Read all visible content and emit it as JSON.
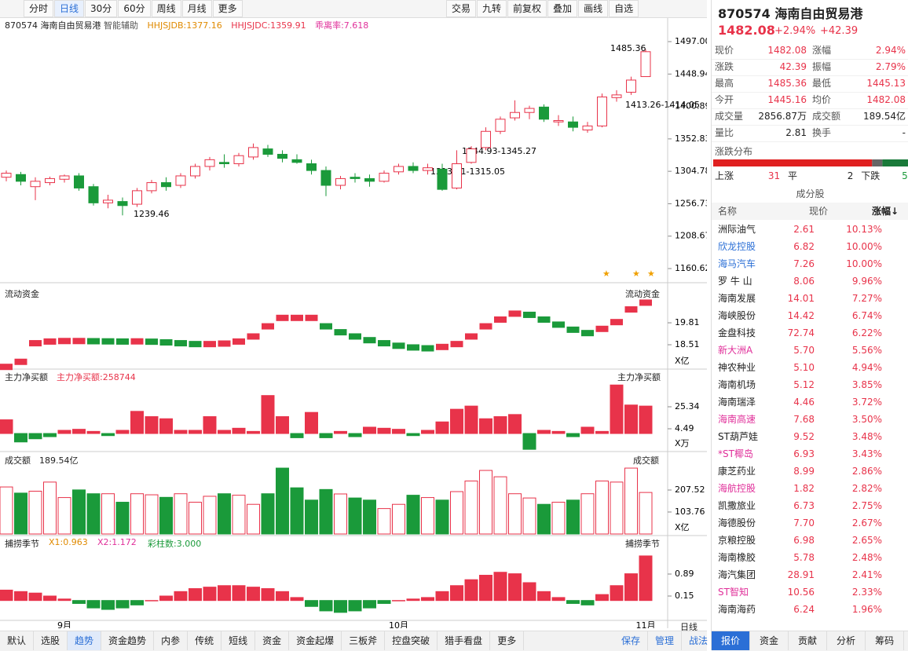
{
  "toolbar": {
    "left": [
      "分时",
      "日线",
      "30分",
      "60分",
      "周线",
      "月线",
      "更多"
    ],
    "right": [
      "交易",
      "九转",
      "前复权",
      "叠加",
      "画线",
      "自选"
    ]
  },
  "chart_header": {
    "code": "870574",
    "name": "海南自由贸易港",
    "assist": "智能辅助",
    "indicators": [
      "HHJSJDB:1377.16",
      "HHJSJDC:1359.91",
      "乖离率:7.618"
    ]
  },
  "annotations": [
    "1485.36",
    "1239.46",
    "1344.93-1345.27",
    "1313.71-1315.05",
    "1413.26-1414.05"
  ],
  "panel_labels": {
    "flow": "流动资金",
    "net": "主力净买额",
    "net_value": "主力净买额:258744",
    "volume": "成交额",
    "volume_value": "189.54亿",
    "season": "捕捞季节",
    "season_values": [
      "X1:0.963",
      "X2:1.172",
      "彩柱数:3.000"
    ],
    "axis_mode": "日线"
  },
  "chart_data": [
    {
      "type": "candlestick",
      "ylim": [
        1139.67,
        1506.31
      ],
      "yticks": [
        {
          "value": 1497,
          "label": "1497.00"
        },
        1448.94,
        1400.89,
        1352.83,
        1304.78,
        1256.73,
        1208.67,
        1160.62
      ],
      "categories": [
        null,
        null,
        null,
        null,
        "9月",
        null,
        null,
        null,
        null,
        null,
        null,
        null,
        null,
        null,
        null,
        null,
        null,
        null,
        null,
        null,
        null,
        null,
        null,
        null,
        null,
        null,
        null,
        "10月",
        null,
        null,
        null,
        null,
        null,
        null,
        null,
        null,
        null,
        null,
        null,
        null,
        null,
        null,
        null,
        null,
        "11月"
      ],
      "up_color": "#e8334a",
      "down_color": "#1a9a3a",
      "ohlc": [
        [
          1296,
          1306,
          1290,
          1302
        ],
        [
          1300,
          1304,
          1284,
          1290
        ],
        [
          1282,
          1296,
          1262,
          1290
        ],
        [
          1288,
          1297,
          1284,
          1294
        ],
        [
          1293,
          1300,
          1288,
          1298
        ],
        [
          1298,
          1302,
          1276,
          1280
        ],
        [
          1282,
          1286,
          1254,
          1258
        ],
        [
          1258,
          1270,
          1250,
          1262
        ],
        [
          1260,
          1266,
          1239.46,
          1254
        ],
        [
          1256,
          1280,
          1252,
          1276
        ],
        [
          1276,
          1292,
          1272,
          1288
        ],
        [
          1288,
          1296,
          1276,
          1282
        ],
        [
          1284,
          1302,
          1280,
          1298
        ],
        [
          1298,
          1316,
          1294,
          1312
        ],
        [
          1312,
          1326,
          1306,
          1322
        ],
        [
          1318,
          1330,
          1310,
          1316
        ],
        [
          1316,
          1332,
          1312,
          1328
        ],
        [
          1326,
          1346,
          1322,
          1340
        ],
        [
          1338,
          1344,
          1326,
          1330
        ],
        [
          1330,
          1336,
          1318,
          1324
        ],
        [
          1322,
          1330,
          1316,
          1318
        ],
        [
          1316,
          1322,
          1300,
          1306
        ],
        [
          1306,
          1312,
          1268,
          1284
        ],
        [
          1284,
          1298,
          1278,
          1294
        ],
        [
          1296,
          1302,
          1288,
          1294
        ],
        [
          1294,
          1300,
          1282,
          1290
        ],
        [
          1290,
          1306,
          1288,
          1302
        ],
        [
          1304,
          1316,
          1300,
          1312
        ],
        [
          1312,
          1318,
          1302,
          1306
        ],
        [
          1306,
          1316,
          1300,
          1310
        ],
        [
          1308,
          1316,
          1276,
          1278
        ],
        [
          1280,
          1336,
          1278,
          1316
        ],
        [
          1318,
          1342,
          1316,
          1338
        ],
        [
          1340,
          1370,
          1336,
          1364
        ],
        [
          1364,
          1386,
          1360,
          1382
        ],
        [
          1384,
          1410,
          1380,
          1392
        ],
        [
          1392,
          1402,
          1382,
          1398
        ],
        [
          1400,
          1404,
          1378,
          1382
        ],
        [
          1378,
          1388,
          1372,
          1380
        ],
        [
          1378,
          1386,
          1364,
          1370
        ],
        [
          1366,
          1378,
          1362,
          1372
        ],
        [
          1372,
          1420,
          1370,
          1415
        ],
        [
          1414,
          1425,
          1408,
          1418
        ],
        [
          1422,
          1445,
          1418,
          1440
        ],
        [
          1445.16,
          1485.36,
          1445.13,
          1482.08
        ]
      ]
    },
    {
      "type": "float_bar",
      "ylim": [
        17.07,
        21.95
      ],
      "yticks": [
        19.81,
        18.51
      ],
      "unit": "X亿",
      "values": [
        17.2,
        17.5,
        18.6,
        18.7,
        18.73,
        18.73,
        18.72,
        18.71,
        18.7,
        18.71,
        18.69,
        18.65,
        18.6,
        18.55,
        18.55,
        18.58,
        18.7,
        19.0,
        19.6,
        20.1,
        20.1,
        20.1,
        19.6,
        19.25,
        19.0,
        18.78,
        18.6,
        18.45,
        18.35,
        18.3,
        18.38,
        18.55,
        19.0,
        19.6,
        20.0,
        20.35,
        20.28,
        20.0,
        19.7,
        19.4,
        19.2,
        19.45,
        19.85,
        20.6,
        21.0
      ]
    },
    {
      "type": "bar",
      "ylim": [
        -17.1,
        61.08
      ],
      "yticks": [
        25.34,
        4.49
      ],
      "unit": "X万",
      "values": [
        13,
        -8,
        -5,
        -3,
        3,
        4,
        2,
        -2,
        3,
        21,
        16,
        14,
        3,
        3,
        16,
        3,
        5,
        2,
        36,
        16,
        -4,
        20,
        -4,
        2,
        -3,
        6,
        5,
        4,
        -2,
        3,
        11,
        23,
        26,
        14,
        16,
        18,
        -15,
        3,
        2,
        -3,
        6,
        2,
        46,
        27,
        26
      ]
    },
    {
      "type": "volume",
      "ylim": [
        -7.41,
        381.69
      ],
      "yticks": [
        207.52,
        103.76
      ],
      "unit": "X亿",
      "values": [
        222,
        193,
        202,
        245,
        172,
        208,
        190,
        190,
        150,
        190,
        185,
        173,
        190,
        150,
        178,
        190,
        183,
        140,
        190,
        311,
        218,
        160,
        210,
        189,
        170,
        160,
        120,
        140,
        183,
        172,
        160,
        200,
        250,
        300,
        270,
        190,
        170,
        140,
        150,
        160,
        190,
        250,
        245,
        311,
        196
      ]
    },
    {
      "type": "bar",
      "ylim": [
        -0.669,
        2.185
      ],
      "yticks": [
        0.89,
        0.15
      ],
      "values": [
        0.35,
        0.3,
        0.25,
        0.15,
        0.05,
        -0.1,
        -0.25,
        -0.3,
        -0.25,
        -0.15,
        0,
        0.15,
        0.3,
        0.4,
        0.45,
        0.5,
        0.5,
        0.45,
        0.4,
        0.3,
        0.1,
        -0.2,
        -0.35,
        -0.4,
        -0.35,
        -0.25,
        -0.1,
        0,
        0.05,
        0.1,
        0.3,
        0.5,
        0.7,
        0.85,
        0.95,
        0.9,
        0.6,
        0.3,
        0.1,
        -0.1,
        -0.15,
        0.2,
        0.5,
        0.9,
        1.5
      ]
    }
  ],
  "bottom_tabs": {
    "left": [
      "默认",
      "选股",
      "趋势",
      "资金趋势",
      "内参",
      "传统",
      "短线",
      "资金",
      "资金起爆",
      "三板斧",
      "控盘突破",
      "猎手看盘",
      "更多"
    ],
    "right": [
      "保存",
      "管理",
      "战法"
    ]
  },
  "quote": {
    "code": "870574",
    "name": "海南自由贸易港",
    "price": "1482.08",
    "change_pct": "+2.94%",
    "change": "+42.39",
    "rows": [
      [
        "现价",
        "1482.08",
        "涨幅",
        "2.94%"
      ],
      [
        "涨跌",
        "42.39",
        "振幅",
        "2.79%"
      ],
      [
        "最高",
        "1485.36",
        "最低",
        "1445.13"
      ],
      [
        "今开",
        "1445.16",
        "均价",
        "1482.08"
      ],
      [
        "成交量",
        "2856.87万",
        "成交额",
        "189.54亿"
      ],
      [
        "量比",
        "2.81",
        "换手",
        "-"
      ]
    ]
  },
  "distribution": {
    "title": "涨跌分布",
    "up_label": "上涨",
    "up": 31,
    "flat_label": "平",
    "flat": 2,
    "down_label": "下跌",
    "down": 5
  },
  "constituents": {
    "title": "成分股",
    "headers": [
      "名称",
      "现价",
      "涨幅↓"
    ],
    "rows": [
      {
        "name": "洲际油气",
        "price": "2.61",
        "pct": "10.13%",
        "color": "#222"
      },
      {
        "name": "欣龙控股",
        "price": "6.82",
        "pct": "10.00%",
        "color": "#2b6fd6"
      },
      {
        "name": "海马汽车",
        "price": "7.26",
        "pct": "10.00%",
        "color": "#2b6fd6"
      },
      {
        "name": "罗 牛 山",
        "price": "8.06",
        "pct": "9.96%",
        "color": "#222"
      },
      {
        "name": "海南发展",
        "price": "14.01",
        "pct": "7.27%",
        "color": "#222"
      },
      {
        "name": "海峡股份",
        "price": "14.42",
        "pct": "6.74%",
        "color": "#222"
      },
      {
        "name": "金盘科技",
        "price": "72.74",
        "pct": "6.22%",
        "color": "#222"
      },
      {
        "name": "新大洲A",
        "price": "5.70",
        "pct": "5.56%",
        "color": "#e0309a"
      },
      {
        "name": "神农种业",
        "price": "5.10",
        "pct": "4.94%",
        "color": "#222"
      },
      {
        "name": "海南机场",
        "price": "5.12",
        "pct": "3.85%",
        "color": "#222"
      },
      {
        "name": "海南瑞泽",
        "price": "4.46",
        "pct": "3.72%",
        "color": "#222"
      },
      {
        "name": "海南高速",
        "price": "7.68",
        "pct": "3.50%",
        "color": "#e0309a"
      },
      {
        "name": "ST葫芦娃",
        "price": "9.52",
        "pct": "3.48%",
        "color": "#222"
      },
      {
        "name": "*ST椰岛",
        "price": "6.93",
        "pct": "3.43%",
        "color": "#e0309a"
      },
      {
        "name": "康芝药业",
        "price": "8.99",
        "pct": "2.86%",
        "color": "#222"
      },
      {
        "name": "海航控股",
        "price": "1.82",
        "pct": "2.82%",
        "color": "#e0309a"
      },
      {
        "name": "凯撒旅业",
        "price": "6.73",
        "pct": "2.75%",
        "color": "#222"
      },
      {
        "name": "海德股份",
        "price": "7.70",
        "pct": "2.67%",
        "color": "#222"
      },
      {
        "name": "京粮控股",
        "price": "6.98",
        "pct": "2.65%",
        "color": "#222"
      },
      {
        "name": "海南橡胶",
        "price": "5.78",
        "pct": "2.48%",
        "color": "#222"
      },
      {
        "name": "海汽集团",
        "price": "28.91",
        "pct": "2.41%",
        "color": "#222"
      },
      {
        "name": "ST智知",
        "price": "10.56",
        "pct": "2.33%",
        "color": "#e0309a"
      },
      {
        "name": "海南海药",
        "price": "6.24",
        "pct": "1.96%",
        "color": "#222"
      }
    ]
  },
  "panel_tabs": [
    "报价",
    "资金",
    "贡献",
    "分析",
    "筹码"
  ]
}
